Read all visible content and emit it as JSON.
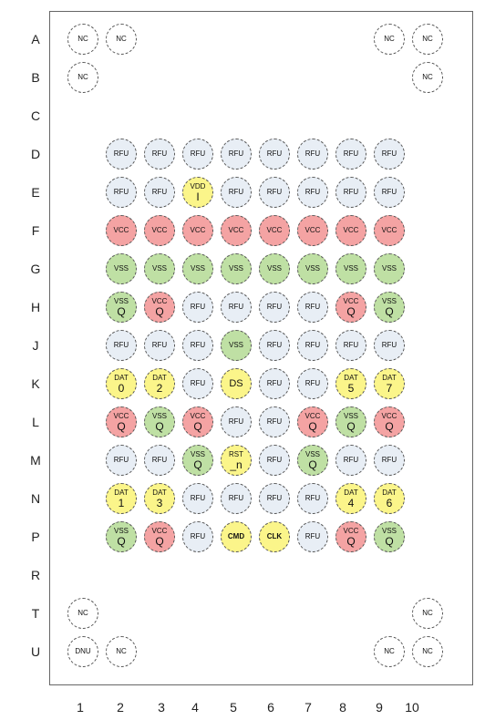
{
  "rows": [
    "A",
    "B",
    "C",
    "D",
    "E",
    "F",
    "G",
    "H",
    "J",
    "K",
    "L",
    "M",
    "N",
    "P",
    "R",
    "T",
    "U"
  ],
  "cols": [
    "1",
    "2",
    "3",
    "4",
    "5",
    "6",
    "7",
    "8",
    "9",
    "10"
  ],
  "colors": {
    "rfu": "#e8eef5",
    "vcc": "#f4a3a3",
    "vss": "#bfe0a4",
    "sig": "#fbf58a",
    "nc": "#ffffff"
  },
  "balls": [
    {
      "id": "A-nc1",
      "row": "A",
      "col": "1",
      "lines": [
        "NC"
      ],
      "kind": "nc"
    },
    {
      "id": "A-nc2",
      "row": "A",
      "col": "2",
      "lines": [
        "NC"
      ],
      "kind": "nc"
    },
    {
      "id": "A-nc9",
      "row": "A",
      "col": "9",
      "lines": [
        "NC"
      ],
      "kind": "nc"
    },
    {
      "id": "A-nc10",
      "row": "A",
      "col": "10",
      "lines": [
        "NC"
      ],
      "kind": "nc"
    },
    {
      "id": "B-nc1",
      "row": "B",
      "col": "1",
      "lines": [
        "NC"
      ],
      "kind": "nc"
    },
    {
      "id": "B-nc10",
      "row": "B",
      "col": "10",
      "lines": [
        "NC"
      ],
      "kind": "nc"
    },
    {
      "id": "D2",
      "row": "D",
      "col": "2",
      "lines": [
        "RFU"
      ],
      "kind": "rfu"
    },
    {
      "id": "D3",
      "row": "D",
      "col": "3",
      "lines": [
        "RFU"
      ],
      "kind": "rfu"
    },
    {
      "id": "D4",
      "row": "D",
      "col": "4",
      "lines": [
        "RFU"
      ],
      "kind": "rfu"
    },
    {
      "id": "D5",
      "row": "D",
      "col": "5",
      "lines": [
        "RFU"
      ],
      "kind": "rfu"
    },
    {
      "id": "D6",
      "row": "D",
      "col": "6",
      "lines": [
        "RFU"
      ],
      "kind": "rfu"
    },
    {
      "id": "D7",
      "row": "D",
      "col": "7",
      "lines": [
        "RFU"
      ],
      "kind": "rfu"
    },
    {
      "id": "D8",
      "row": "D",
      "col": "8",
      "lines": [
        "RFU"
      ],
      "kind": "rfu"
    },
    {
      "id": "D9",
      "row": "D",
      "col": "9",
      "lines": [
        "RFU"
      ],
      "kind": "rfu"
    },
    {
      "id": "E2",
      "row": "E",
      "col": "2",
      "lines": [
        "RFU"
      ],
      "kind": "rfu"
    },
    {
      "id": "E3",
      "row": "E",
      "col": "3",
      "lines": [
        "RFU"
      ],
      "kind": "rfu"
    },
    {
      "id": "E4",
      "row": "E",
      "col": "4",
      "lines": [
        "VDD",
        "I"
      ],
      "kind": "sig"
    },
    {
      "id": "E5",
      "row": "E",
      "col": "5",
      "lines": [
        "RFU"
      ],
      "kind": "rfu"
    },
    {
      "id": "E6",
      "row": "E",
      "col": "6",
      "lines": [
        "RFU"
      ],
      "kind": "rfu"
    },
    {
      "id": "E7",
      "row": "E",
      "col": "7",
      "lines": [
        "RFU"
      ],
      "kind": "rfu"
    },
    {
      "id": "E8",
      "row": "E",
      "col": "8",
      "lines": [
        "RFU"
      ],
      "kind": "rfu"
    },
    {
      "id": "E9",
      "row": "E",
      "col": "9",
      "lines": [
        "RFU"
      ],
      "kind": "rfu"
    },
    {
      "id": "F2",
      "row": "F",
      "col": "2",
      "lines": [
        "VCC"
      ],
      "kind": "vcc"
    },
    {
      "id": "F3",
      "row": "F",
      "col": "3",
      "lines": [
        "VCC"
      ],
      "kind": "vcc"
    },
    {
      "id": "F4",
      "row": "F",
      "col": "4",
      "lines": [
        "VCC"
      ],
      "kind": "vcc"
    },
    {
      "id": "F5",
      "row": "F",
      "col": "5",
      "lines": [
        "VCC"
      ],
      "kind": "vcc"
    },
    {
      "id": "F6",
      "row": "F",
      "col": "6",
      "lines": [
        "VCC"
      ],
      "kind": "vcc"
    },
    {
      "id": "F7",
      "row": "F",
      "col": "7",
      "lines": [
        "VCC"
      ],
      "kind": "vcc"
    },
    {
      "id": "F8",
      "row": "F",
      "col": "8",
      "lines": [
        "VCC"
      ],
      "kind": "vcc"
    },
    {
      "id": "F9",
      "row": "F",
      "col": "9",
      "lines": [
        "VCC"
      ],
      "kind": "vcc"
    },
    {
      "id": "G2",
      "row": "G",
      "col": "2",
      "lines": [
        "VSS"
      ],
      "kind": "vss"
    },
    {
      "id": "G3",
      "row": "G",
      "col": "3",
      "lines": [
        "VSS"
      ],
      "kind": "vss"
    },
    {
      "id": "G4",
      "row": "G",
      "col": "4",
      "lines": [
        "VSS"
      ],
      "kind": "vss"
    },
    {
      "id": "G5",
      "row": "G",
      "col": "5",
      "lines": [
        "VSS"
      ],
      "kind": "vss"
    },
    {
      "id": "G6",
      "row": "G",
      "col": "6",
      "lines": [
        "VSS"
      ],
      "kind": "vss"
    },
    {
      "id": "G7",
      "row": "G",
      "col": "7",
      "lines": [
        "VSS"
      ],
      "kind": "vss"
    },
    {
      "id": "G8",
      "row": "G",
      "col": "8",
      "lines": [
        "VSS"
      ],
      "kind": "vss"
    },
    {
      "id": "G9",
      "row": "G",
      "col": "9",
      "lines": [
        "VSS"
      ],
      "kind": "vss"
    },
    {
      "id": "H2",
      "row": "H",
      "col": "2",
      "lines": [
        "VSS",
        "Q"
      ],
      "kind": "vss"
    },
    {
      "id": "H3",
      "row": "H",
      "col": "3",
      "lines": [
        "VCC",
        "Q"
      ],
      "kind": "vcc"
    },
    {
      "id": "H4",
      "row": "H",
      "col": "4",
      "lines": [
        "RFU"
      ],
      "kind": "rfu"
    },
    {
      "id": "H5",
      "row": "H",
      "col": "5",
      "lines": [
        "RFU"
      ],
      "kind": "rfu"
    },
    {
      "id": "H6",
      "row": "H",
      "col": "6",
      "lines": [
        "RFU"
      ],
      "kind": "rfu"
    },
    {
      "id": "H7",
      "row": "H",
      "col": "7",
      "lines": [
        "RFU"
      ],
      "kind": "rfu"
    },
    {
      "id": "H8",
      "row": "H",
      "col": "8",
      "lines": [
        "VCC",
        "Q"
      ],
      "kind": "vcc"
    },
    {
      "id": "H9",
      "row": "H",
      "col": "9",
      "lines": [
        "VSS",
        "Q"
      ],
      "kind": "vss"
    },
    {
      "id": "J2",
      "row": "J",
      "col": "2",
      "lines": [
        "RFU"
      ],
      "kind": "rfu"
    },
    {
      "id": "J3",
      "row": "J",
      "col": "3",
      "lines": [
        "RFU"
      ],
      "kind": "rfu"
    },
    {
      "id": "J4",
      "row": "J",
      "col": "4",
      "lines": [
        "RFU"
      ],
      "kind": "rfu"
    },
    {
      "id": "J5",
      "row": "J",
      "col": "5",
      "lines": [
        "VSS"
      ],
      "kind": "vss"
    },
    {
      "id": "J6",
      "row": "J",
      "col": "6",
      "lines": [
        "RFU"
      ],
      "kind": "rfu"
    },
    {
      "id": "J7",
      "row": "J",
      "col": "7",
      "lines": [
        "RFU"
      ],
      "kind": "rfu"
    },
    {
      "id": "J8",
      "row": "J",
      "col": "8",
      "lines": [
        "RFU"
      ],
      "kind": "rfu"
    },
    {
      "id": "J9",
      "row": "J",
      "col": "9",
      "lines": [
        "RFU"
      ],
      "kind": "rfu"
    },
    {
      "id": "K2",
      "row": "K",
      "col": "2",
      "lines": [
        "DAT",
        "0"
      ],
      "kind": "sig"
    },
    {
      "id": "K3",
      "row": "K",
      "col": "3",
      "lines": [
        "DAT",
        "2"
      ],
      "kind": "sig"
    },
    {
      "id": "K4",
      "row": "K",
      "col": "4",
      "lines": [
        "RFU"
      ],
      "kind": "rfu"
    },
    {
      "id": "K5",
      "row": "K",
      "col": "5",
      "lines": [
        "DS"
      ],
      "kind": "sig"
    },
    {
      "id": "K6",
      "row": "K",
      "col": "6",
      "lines": [
        "RFU"
      ],
      "kind": "rfu"
    },
    {
      "id": "K7",
      "row": "K",
      "col": "7",
      "lines": [
        "RFU"
      ],
      "kind": "rfu"
    },
    {
      "id": "K8",
      "row": "K",
      "col": "8",
      "lines": [
        "DAT",
        "5"
      ],
      "kind": "sig"
    },
    {
      "id": "K9",
      "row": "K",
      "col": "9",
      "lines": [
        "DAT",
        "7"
      ],
      "kind": "sig"
    },
    {
      "id": "L2",
      "row": "L",
      "col": "2",
      "lines": [
        "VCC",
        "Q"
      ],
      "kind": "vcc"
    },
    {
      "id": "L3",
      "row": "L",
      "col": "3",
      "lines": [
        "VSS",
        "Q"
      ],
      "kind": "vss"
    },
    {
      "id": "L4",
      "row": "L",
      "col": "4",
      "lines": [
        "VCC",
        "Q"
      ],
      "kind": "vcc"
    },
    {
      "id": "L5",
      "row": "L",
      "col": "5",
      "lines": [
        "RFU"
      ],
      "kind": "rfu"
    },
    {
      "id": "L6",
      "row": "L",
      "col": "6",
      "lines": [
        "RFU"
      ],
      "kind": "rfu"
    },
    {
      "id": "L7",
      "row": "L",
      "col": "7",
      "lines": [
        "VCC",
        "Q"
      ],
      "kind": "vcc"
    },
    {
      "id": "L8",
      "row": "L",
      "col": "8",
      "lines": [
        "VSS",
        "Q"
      ],
      "kind": "vss"
    },
    {
      "id": "L9",
      "row": "L",
      "col": "9",
      "lines": [
        "VCC",
        "Q"
      ],
      "kind": "vcc"
    },
    {
      "id": "M2",
      "row": "M",
      "col": "2",
      "lines": [
        "RFU"
      ],
      "kind": "rfu"
    },
    {
      "id": "M3",
      "row": "M",
      "col": "3",
      "lines": [
        "RFU"
      ],
      "kind": "rfu"
    },
    {
      "id": "M4",
      "row": "M",
      "col": "4",
      "lines": [
        "VSS",
        "Q"
      ],
      "kind": "vss"
    },
    {
      "id": "M5",
      "row": "M",
      "col": "5",
      "lines": [
        "RST",
        "_n"
      ],
      "kind": "sig"
    },
    {
      "id": "M6",
      "row": "M",
      "col": "6",
      "lines": [
        "RFU"
      ],
      "kind": "rfu"
    },
    {
      "id": "M7",
      "row": "M",
      "col": "7",
      "lines": [
        "VSS",
        "Q"
      ],
      "kind": "vss"
    },
    {
      "id": "M8",
      "row": "M",
      "col": "8",
      "lines": [
        "RFU"
      ],
      "kind": "rfu"
    },
    {
      "id": "M9",
      "row": "M",
      "col": "9",
      "lines": [
        "RFU"
      ],
      "kind": "rfu"
    },
    {
      "id": "N2",
      "row": "N",
      "col": "2",
      "lines": [
        "DAT",
        "1"
      ],
      "kind": "sig"
    },
    {
      "id": "N3",
      "row": "N",
      "col": "3",
      "lines": [
        "DAT",
        "3"
      ],
      "kind": "sig"
    },
    {
      "id": "N4",
      "row": "N",
      "col": "4",
      "lines": [
        "RFU"
      ],
      "kind": "rfu"
    },
    {
      "id": "N5",
      "row": "N",
      "col": "5",
      "lines": [
        "RFU"
      ],
      "kind": "rfu"
    },
    {
      "id": "N6",
      "row": "N",
      "col": "6",
      "lines": [
        "RFU"
      ],
      "kind": "rfu"
    },
    {
      "id": "N7",
      "row": "N",
      "col": "7",
      "lines": [
        "RFU"
      ],
      "kind": "rfu"
    },
    {
      "id": "N8",
      "row": "N",
      "col": "8",
      "lines": [
        "DAT",
        "4"
      ],
      "kind": "sig"
    },
    {
      "id": "N9",
      "row": "N",
      "col": "9",
      "lines": [
        "DAT",
        "6"
      ],
      "kind": "sig"
    },
    {
      "id": "P2",
      "row": "P",
      "col": "2",
      "lines": [
        "VSS",
        "Q"
      ],
      "kind": "vss"
    },
    {
      "id": "P3",
      "row": "P",
      "col": "3",
      "lines": [
        "VCC",
        "Q"
      ],
      "kind": "vcc"
    },
    {
      "id": "P4",
      "row": "P",
      "col": "4",
      "lines": [
        "RFU"
      ],
      "kind": "rfu"
    },
    {
      "id": "P5",
      "row": "P",
      "col": "5",
      "lines": [
        "CMD"
      ],
      "kind": "sig",
      "bold": true
    },
    {
      "id": "P6",
      "row": "P",
      "col": "6",
      "lines": [
        "CLK"
      ],
      "kind": "sig",
      "bold": true
    },
    {
      "id": "P7",
      "row": "P",
      "col": "7",
      "lines": [
        "RFU"
      ],
      "kind": "rfu"
    },
    {
      "id": "P8",
      "row": "P",
      "col": "8",
      "lines": [
        "VCC",
        "Q"
      ],
      "kind": "vcc"
    },
    {
      "id": "P9",
      "row": "P",
      "col": "9",
      "lines": [
        "VSS",
        "Q"
      ],
      "kind": "vss"
    },
    {
      "id": "T-nc1",
      "row": "T",
      "col": "1",
      "lines": [
        "NC"
      ],
      "kind": "nc"
    },
    {
      "id": "T-nc10",
      "row": "T",
      "col": "10",
      "lines": [
        "NC"
      ],
      "kind": "nc"
    },
    {
      "id": "U-dnu1",
      "row": "U",
      "col": "1",
      "lines": [
        "DNU"
      ],
      "kind": "nc"
    },
    {
      "id": "U-nc2",
      "row": "U",
      "col": "2",
      "lines": [
        "NC"
      ],
      "kind": "nc"
    },
    {
      "id": "U-nc9",
      "row": "U",
      "col": "9",
      "lines": [
        "NC"
      ],
      "kind": "nc"
    },
    {
      "id": "U-nc10",
      "row": "U",
      "col": "10",
      "lines": [
        "NC"
      ],
      "kind": "nc"
    }
  ]
}
